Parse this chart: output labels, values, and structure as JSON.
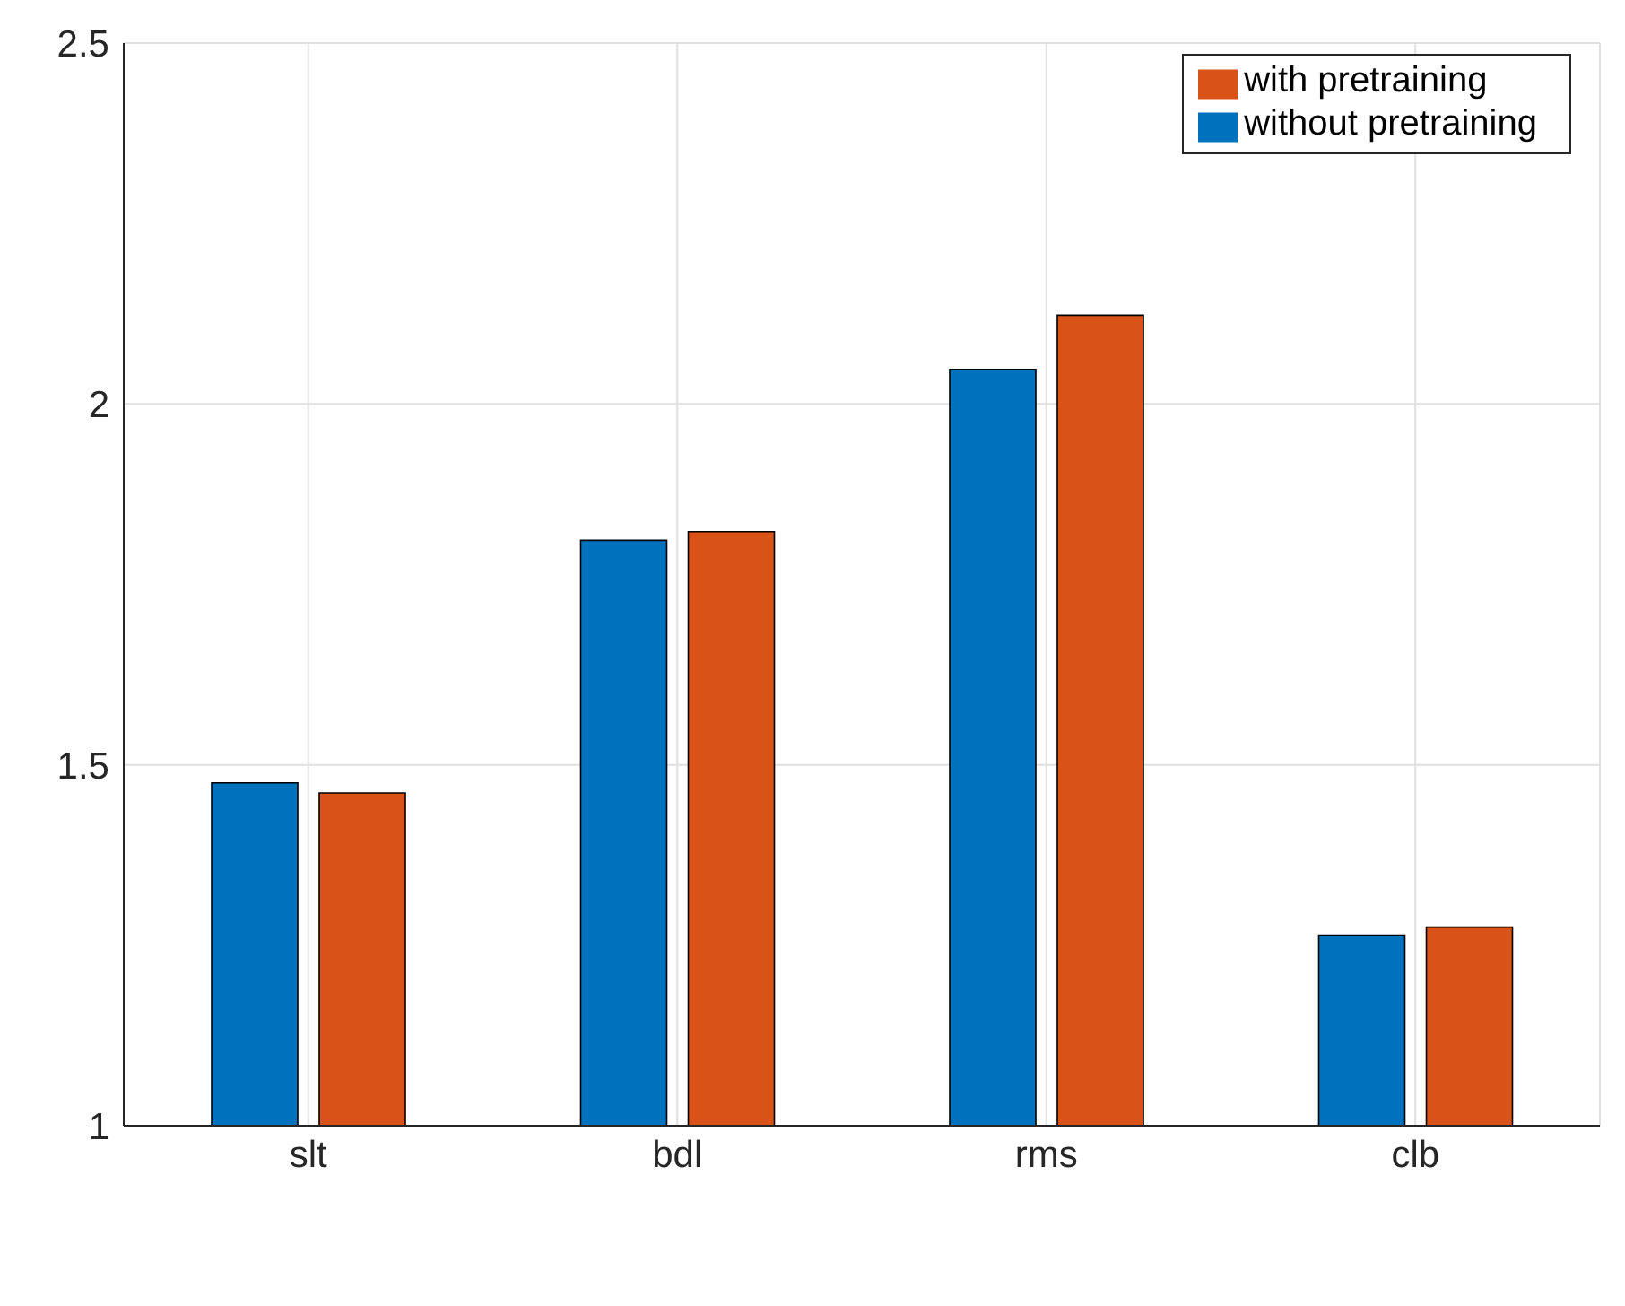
{
  "chart_data": {
    "type": "bar",
    "categories": [
      "slt",
      "bdl",
      "rms",
      "clb"
    ],
    "series": [
      {
        "name": "without pretraining",
        "color": "#0072bd",
        "values": [
          1.475,
          1.811,
          2.048,
          1.264
        ]
      },
      {
        "name": "with pretraining",
        "color": "#d95319",
        "values": [
          1.461,
          1.823,
          2.123,
          1.275
        ]
      }
    ],
    "ylim": [
      1,
      2.5
    ],
    "yticks": [
      1,
      1.5,
      2,
      2.5
    ],
    "grid": true,
    "legend": "top right"
  }
}
